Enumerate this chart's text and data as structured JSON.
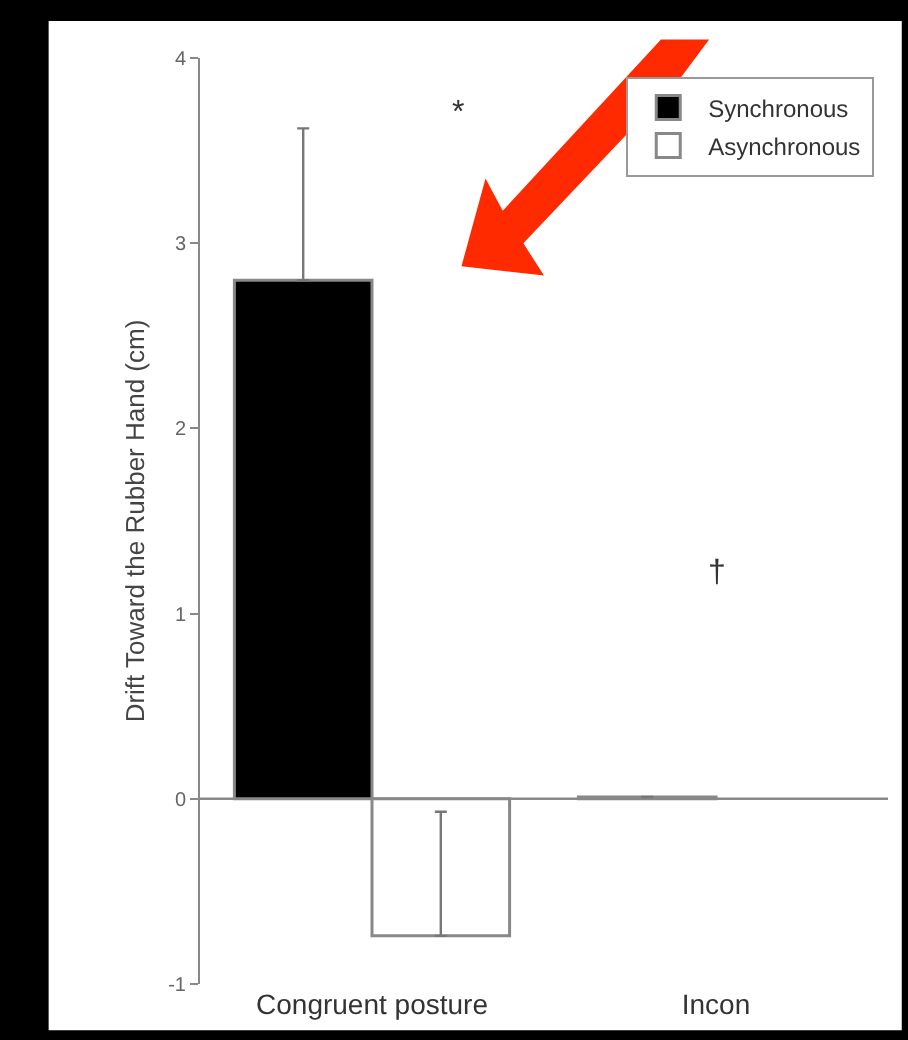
{
  "chart_data": {
    "type": "bar",
    "ylabel": "Drift Toward the Rubber Hand (cm)",
    "categories": [
      "Congruent posture",
      "Incon"
    ],
    "series": [
      {
        "name": "Synchronous",
        "color": "#000000",
        "values": [
          2.8,
          0.01
        ],
        "errors": [
          [
            2.8,
            3.62
          ],
          null
        ]
      },
      {
        "name": "Asynchronous",
        "color": "#ffffff",
        "values": [
          -0.74,
          null
        ],
        "errors": [
          [
            -0.74,
            -0.07
          ],
          null
        ]
      }
    ],
    "ylim": [
      -1,
      4
    ],
    "yticks": [
      -1,
      0,
      1,
      2,
      3,
      4
    ],
    "annotations": [
      "*",
      "†"
    ],
    "legend": "top right"
  }
}
